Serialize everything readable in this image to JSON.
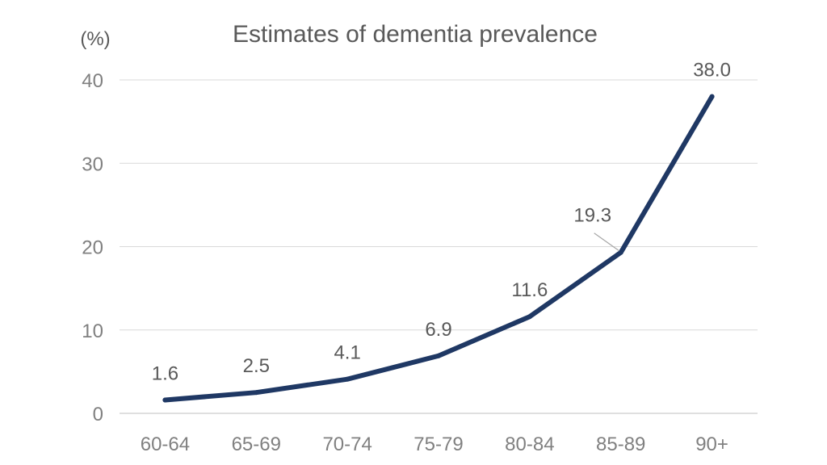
{
  "chart_data": {
    "type": "line",
    "title": "Estimates of dementia prevalence",
    "unit_label": "(%)",
    "categories": [
      "60-64",
      "65-69",
      "70-74",
      "75-79",
      "80-84",
      "85-89",
      "90+"
    ],
    "series": [
      {
        "values": [
          1.6,
          2.5,
          4.1,
          6.9,
          11.6,
          19.3,
          38.0
        ],
        "labels": [
          "1.6",
          "2.5",
          "4.1",
          "6.9",
          "11.6",
          "19.3",
          "38.0"
        ],
        "color": "#1f3864"
      }
    ],
    "ylim": [
      0,
      40
    ],
    "yticks": [
      "0",
      "10",
      "20",
      "30",
      "40"
    ],
    "grid": true,
    "legend": "none"
  }
}
